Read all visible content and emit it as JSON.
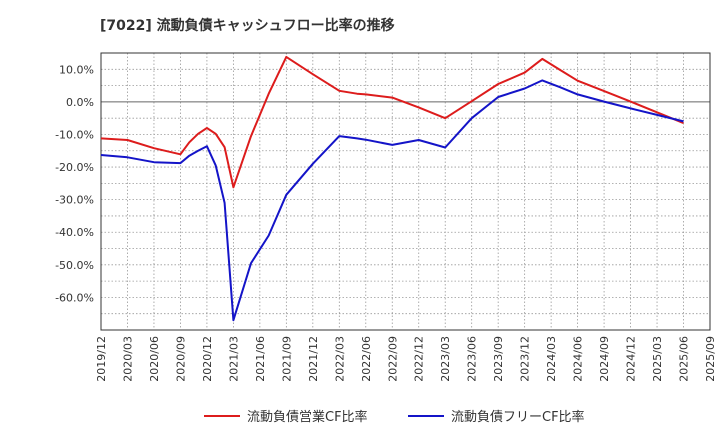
{
  "chart_data": {
    "type": "line",
    "title": "[7022]  流動負債キャッシュフロー比率の推移",
    "xlabel": "",
    "ylabel": "",
    "ylim": [
      -70,
      15
    ],
    "y_ticks": [
      10,
      0,
      -10,
      -20,
      -30,
      -40,
      -50,
      -60
    ],
    "y_tick_labels": [
      "10.0%",
      "0.0%",
      "-10.0%",
      "-20.0%",
      "-30.0%",
      "-40.0%",
      "-50.0%",
      "-60.0%"
    ],
    "x_tick_labels": [
      "2019/12",
      "2020/03",
      "2020/06",
      "2020/09",
      "2020/12",
      "2021/03",
      "2021/06",
      "2021/09",
      "2021/12",
      "2022/03",
      "2022/06",
      "2022/09",
      "2022/12",
      "2023/03",
      "2023/06",
      "2023/09",
      "2023/12",
      "2024/03",
      "2024/06",
      "2024/09",
      "2024/12",
      "2025/03",
      "2025/06",
      "2025/09"
    ],
    "x_range": [
      0,
      69
    ],
    "legend_position": "bottom",
    "series": [
      {
        "name": "流動負債営業CF比率",
        "color": "#dd1c1c",
        "x": [
          0,
          3,
          6,
          9,
          10,
          11,
          12,
          13,
          14,
          15,
          17,
          19,
          21,
          24,
          27,
          29,
          30,
          33,
          36,
          39,
          42,
          45,
          48,
          50,
          52,
          54,
          57,
          60,
          63,
          66
        ],
        "values": [
          -11.2,
          -11.7,
          -14.2,
          -16.1,
          -12.4,
          -9.8,
          -8.0,
          -9.8,
          -13.9,
          -26.2,
          -10.5,
          2.5,
          13.8,
          8.5,
          3.4,
          2.5,
          2.3,
          1.3,
          -1.7,
          -5.0,
          0.2,
          5.5,
          9.0,
          13.2,
          9.8,
          6.5,
          3.3,
          0.1,
          -3.2,
          -6.5
        ]
      },
      {
        "name": "流動負債フリーCF比率",
        "color": "#1414c8",
        "x": [
          0,
          3,
          6,
          9,
          10,
          11,
          12,
          13,
          14,
          15,
          17,
          19,
          21,
          24,
          27,
          29,
          30,
          33,
          36,
          39,
          42,
          45,
          48,
          50,
          52,
          54,
          57,
          60,
          63,
          66
        ],
        "values": [
          -16.3,
          -17.0,
          -18.5,
          -18.8,
          -16.5,
          -15.0,
          -13.6,
          -19.5,
          -31.0,
          -67.0,
          -49.5,
          -41.0,
          -28.5,
          -19.0,
          -10.5,
          -11.2,
          -11.6,
          -13.2,
          -11.7,
          -14.0,
          -5.0,
          1.5,
          4.1,
          6.6,
          4.5,
          2.3,
          0.1,
          -2.0,
          -4.0,
          -6.0
        ]
      }
    ]
  }
}
